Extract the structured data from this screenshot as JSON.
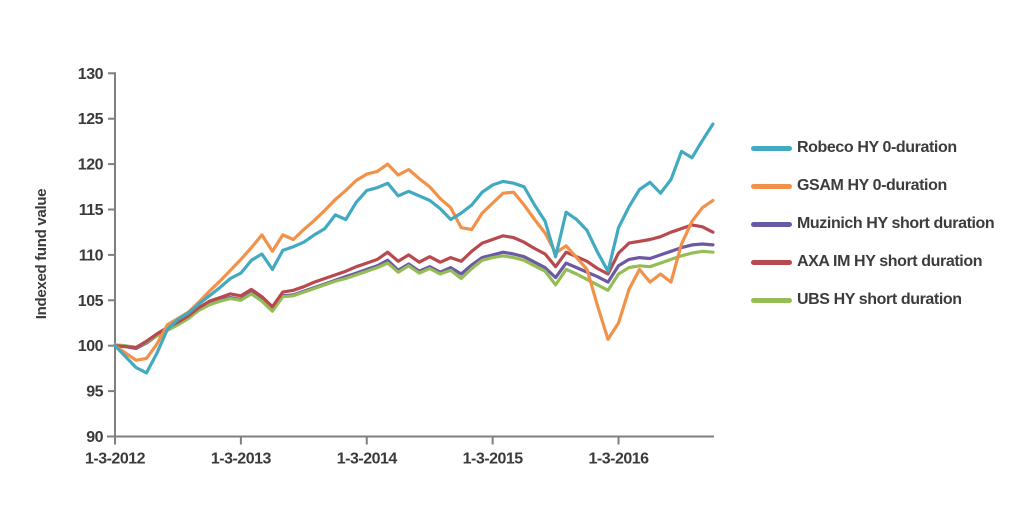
{
  "style": {
    "background": "#ffffff",
    "axis_color": "#7f7f7f",
    "tick_text_color": "#3a3a3a"
  },
  "chart_data": {
    "type": "line",
    "title": "",
    "xlabel": "",
    "ylabel": "Indexed fund value",
    "ylim": [
      90,
      130
    ],
    "yticks": [
      90,
      95,
      100,
      105,
      110,
      115,
      120,
      125,
      130
    ],
    "grid": false,
    "legend_position": "right",
    "x_dates": [
      "2012-03",
      "2012-04",
      "2012-05",
      "2012-06",
      "2012-07",
      "2012-08",
      "2012-09",
      "2012-10",
      "2012-11",
      "2012-12",
      "2013-01",
      "2013-02",
      "2013-03",
      "2013-04",
      "2013-05",
      "2013-06",
      "2013-07",
      "2013-08",
      "2013-09",
      "2013-10",
      "2013-11",
      "2013-12",
      "2014-01",
      "2014-02",
      "2014-03",
      "2014-04",
      "2014-05",
      "2014-06",
      "2014-07",
      "2014-08",
      "2014-09",
      "2014-10",
      "2014-11",
      "2014-12",
      "2015-01",
      "2015-02",
      "2015-03",
      "2015-04",
      "2015-05",
      "2015-06",
      "2015-07",
      "2015-08",
      "2015-09",
      "2015-10",
      "2015-11",
      "2015-12",
      "2016-01",
      "2016-02",
      "2016-03",
      "2016-04",
      "2016-05",
      "2016-06",
      "2016-07",
      "2016-08",
      "2016-09",
      "2016-10",
      "2016-11",
      "2016-12"
    ],
    "xticks": [
      {
        "label": "1-3-2012",
        "index": 0
      },
      {
        "label": "1-3-2013",
        "index": 12
      },
      {
        "label": "1-3-2014",
        "index": 24
      },
      {
        "label": "1-3-2015",
        "index": 36
      },
      {
        "label": "1-3-2016",
        "index": 48
      }
    ],
    "series": [
      {
        "name": "Robeco HY 0-duration",
        "color": "#41aac1",
        "values": [
          100.0,
          98.8,
          97.6,
          97.0,
          99.2,
          101.8,
          102.9,
          103.6,
          104.6,
          105.5,
          106.4,
          107.4,
          108.0,
          109.4,
          110.1,
          108.4,
          110.5,
          110.9,
          111.4,
          112.2,
          112.9,
          114.4,
          113.9,
          115.8,
          117.1,
          117.4,
          117.9,
          116.5,
          117.0,
          116.5,
          116.0,
          115.1,
          113.9,
          114.6,
          115.5,
          116.9,
          117.7,
          118.1,
          117.9,
          117.5,
          115.5,
          113.7,
          109.8,
          114.7,
          113.9,
          112.7,
          110.3,
          108.2,
          113.0,
          115.3,
          117.2,
          118.0,
          116.8,
          118.3,
          121.4,
          120.7,
          122.6,
          124.4
        ]
      },
      {
        "name": "GSAM HY 0-duration",
        "color": "#f29149",
        "values": [
          100.0,
          99.2,
          98.4,
          98.6,
          100.2,
          102.3,
          103.0,
          103.7,
          104.8,
          106.0,
          107.1,
          108.3,
          109.5,
          110.8,
          112.2,
          110.4,
          112.2,
          111.7,
          112.8,
          113.8,
          114.9,
          116.1,
          117.1,
          118.2,
          118.9,
          119.2,
          120.0,
          118.8,
          119.4,
          118.4,
          117.5,
          116.2,
          115.2,
          113.0,
          112.8,
          114.6,
          115.7,
          116.8,
          116.9,
          115.5,
          113.9,
          112.4,
          110.2,
          111.0,
          109.7,
          108.4,
          104.4,
          100.7,
          102.5,
          106.2,
          108.4,
          107.0,
          107.9,
          107.0,
          111.2,
          113.7,
          115.2,
          116.0
        ]
      },
      {
        "name": "Muzinich HY short duration",
        "color": "#6c59a3",
        "values": [
          100.0,
          99.9,
          99.7,
          100.3,
          101.1,
          101.8,
          102.4,
          103.1,
          104.0,
          104.7,
          105.0,
          105.3,
          105.1,
          105.8,
          105.0,
          103.9,
          105.5,
          105.6,
          106.0,
          106.4,
          106.8,
          107.2,
          107.6,
          108.0,
          108.4,
          108.8,
          109.4,
          108.3,
          109.0,
          108.2,
          108.7,
          108.1,
          108.6,
          107.9,
          108.9,
          109.7,
          110.0,
          110.3,
          110.1,
          109.8,
          109.2,
          108.6,
          107.5,
          109.1,
          108.6,
          108.1,
          107.6,
          107.0,
          108.8,
          109.5,
          109.7,
          109.6,
          110.0,
          110.4,
          110.8,
          111.1,
          111.2,
          111.1
        ]
      },
      {
        "name": "AXA IM HY short duration",
        "color": "#b8494e",
        "values": [
          100.0,
          99.9,
          99.8,
          100.5,
          101.3,
          102.0,
          102.6,
          103.3,
          104.2,
          104.9,
          105.3,
          105.7,
          105.5,
          106.2,
          105.4,
          104.3,
          105.9,
          106.1,
          106.5,
          107.0,
          107.4,
          107.8,
          108.2,
          108.7,
          109.1,
          109.5,
          110.3,
          109.3,
          110.0,
          109.2,
          109.8,
          109.2,
          109.7,
          109.3,
          110.4,
          111.3,
          111.7,
          112.1,
          111.9,
          111.4,
          110.7,
          110.1,
          108.7,
          110.3,
          109.8,
          109.3,
          108.5,
          107.9,
          110.2,
          111.3,
          111.5,
          111.7,
          112.0,
          112.5,
          112.9,
          113.3,
          113.1,
          112.5
        ]
      },
      {
        "name": "UBS HY short duration",
        "color": "#94bd55",
        "values": [
          100.1,
          100.0,
          99.8,
          100.4,
          101.1,
          101.7,
          102.3,
          103.0,
          103.9,
          104.5,
          104.9,
          105.2,
          105.0,
          105.7,
          104.9,
          103.8,
          105.4,
          105.5,
          105.9,
          106.3,
          106.7,
          107.1,
          107.4,
          107.8,
          108.2,
          108.6,
          109.1,
          108.1,
          108.8,
          108.0,
          108.5,
          107.9,
          108.3,
          107.4,
          108.5,
          109.4,
          109.7,
          109.9,
          109.7,
          109.4,
          108.8,
          108.2,
          106.7,
          108.4,
          107.9,
          107.3,
          106.7,
          106.1,
          107.9,
          108.6,
          108.8,
          108.7,
          109.1,
          109.5,
          109.9,
          110.2,
          110.4,
          110.3
        ]
      }
    ]
  }
}
